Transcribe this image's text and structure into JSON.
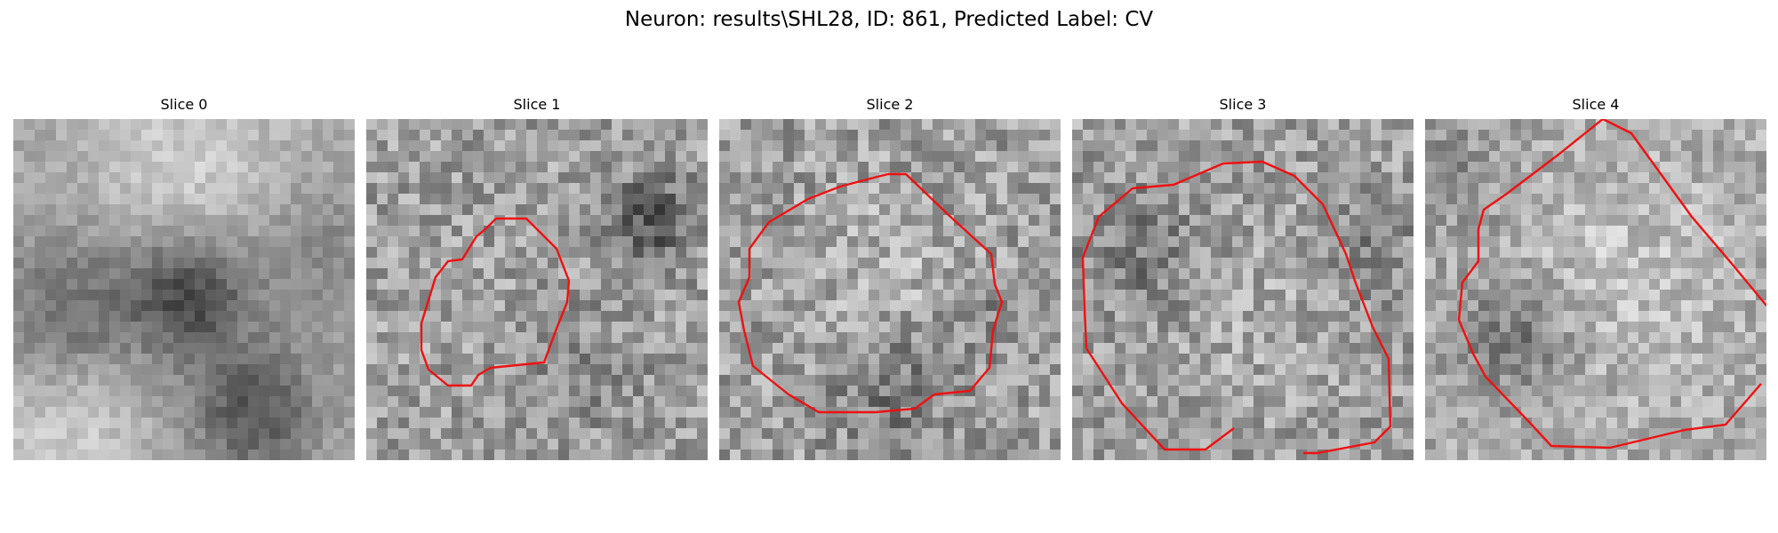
{
  "figure": {
    "title": "Neuron: results\\SHL28, ID: 861, Predicted Label: CV"
  },
  "panels": [
    {
      "title": "Slice 0"
    },
    {
      "title": "Slice 1"
    },
    {
      "title": "Slice 2"
    },
    {
      "title": "Slice 3"
    },
    {
      "title": "Slice 4"
    }
  ],
  "colors": {
    "contour": "#ee1111",
    "background": "#ffffff"
  }
}
